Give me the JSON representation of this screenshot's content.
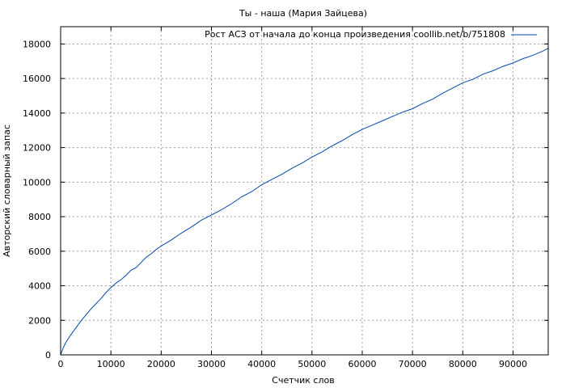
{
  "chart_data": {
    "type": "line",
    "title": "Ты - наша (Мария Зайцева)",
    "xlabel": "Счетчик слов",
    "ylabel": "Авторский словарный запас",
    "xlim": [
      0,
      97000
    ],
    "ylim": [
      0,
      19000
    ],
    "xticks": [
      0,
      10000,
      20000,
      30000,
      40000,
      50000,
      60000,
      70000,
      80000,
      90000
    ],
    "yticks": [
      0,
      2000,
      4000,
      6000,
      8000,
      10000,
      12000,
      14000,
      16000,
      18000
    ],
    "grid": true,
    "legend_position": "top-right",
    "series": [
      {
        "name": "Рост АСЗ от начала до конца произведения coollib.net/b/751808",
        "color": "#0047ab",
        "x": [
          0,
          500,
          1000,
          2000,
          3000,
          4000,
          5000,
          6000,
          7000,
          8000,
          9000,
          10000,
          11000,
          12000,
          13000,
          14000,
          15000,
          16000,
          17000,
          18000,
          19000,
          20000,
          22000,
          24000,
          26000,
          28000,
          30000,
          32000,
          34000,
          36000,
          38000,
          40000,
          42000,
          44000,
          46000,
          48000,
          50000,
          52000,
          54000,
          56000,
          58000,
          60000,
          62000,
          64000,
          66000,
          68000,
          70000,
          72000,
          74000,
          76000,
          78000,
          80000,
          82000,
          84000,
          86000,
          88000,
          90000,
          92000,
          94000,
          96000,
          97000
        ],
        "y": [
          0,
          400,
          700,
          1150,
          1550,
          1950,
          2300,
          2650,
          2950,
          3250,
          3600,
          3900,
          4150,
          4350,
          4600,
          4900,
          5050,
          5350,
          5650,
          5850,
          6100,
          6300,
          6650,
          7050,
          7400,
          7800,
          8100,
          8400,
          8750,
          9150,
          9450,
          9850,
          10150,
          10450,
          10800,
          11100,
          11450,
          11750,
          12100,
          12400,
          12750,
          13050,
          13300,
          13550,
          13800,
          14050,
          14250,
          14550,
          14800,
          15150,
          15450,
          15750,
          15950,
          16250,
          16450,
          16700,
          16900,
          17150,
          17350,
          17600,
          17750
        ]
      }
    ]
  }
}
